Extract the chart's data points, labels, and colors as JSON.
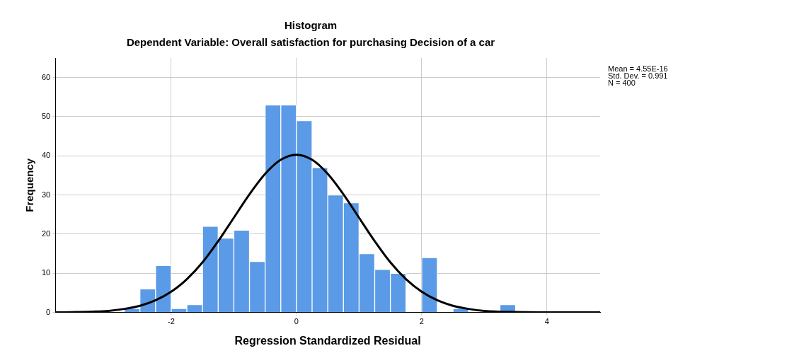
{
  "chart_data": {
    "type": "histogram",
    "title": "Histogram",
    "subtitle": "Dependent Variable: Overall satisfaction for purchasing Decision of a car",
    "xlabel": "Regression Standardized Residual",
    "ylabel": "Frequency",
    "annotations": [
      "Mean = 4.55E-16",
      "Std. Dev. = 0.991",
      "N = 400"
    ],
    "bins": [
      -2.75,
      -2.5,
      -2.25,
      -2,
      -1.75,
      -1.5,
      -1.25,
      -1,
      -0.75,
      -0.5,
      -0.25,
      0,
      0.25,
      0.5,
      0.75,
      1,
      1.25,
      1.5,
      1.75,
      2,
      2.25,
      2.5,
      2.75,
      3,
      3.25,
      3.5
    ],
    "values": [
      1,
      6,
      12,
      1,
      2,
      22,
      19,
      21,
      13,
      53,
      53,
      49,
      37,
      30,
      28,
      15,
      11,
      10,
      0,
      14,
      0,
      1,
      0,
      0,
      2
    ],
    "color": "#5a9ae6",
    "series": [
      {
        "type": "line",
        "color": "#000000",
        "x": [
          -3.85,
          -3.5,
          -3.25,
          -3,
          -2.75,
          -2.5,
          -2.25,
          -2,
          -1.75,
          -1.5,
          -1.25,
          -1,
          -0.75,
          -0.5,
          -0.25,
          0,
          0.25,
          0.5,
          0.75,
          1,
          1.25,
          1.5,
          1.75,
          2,
          2.25,
          2.5,
          2.75,
          3,
          3.5,
          4,
          4.85
        ],
        "values": [
          0,
          0.1,
          0.2,
          0.4,
          0.9,
          1.7,
          3.1,
          5.3,
          8.5,
          12.8,
          18.2,
          24.2,
          30.2,
          35.4,
          39,
          40.3,
          39,
          35.4,
          30.2,
          24.2,
          18.2,
          12.8,
          8.5,
          5.3,
          3.1,
          1.7,
          0.9,
          0.4,
          0.1,
          0,
          0
        ]
      }
    ],
    "xlim": [
      -3.85,
      4.85
    ],
    "xticks": [
      -2,
      0,
      2,
      4
    ],
    "ylim": [
      0,
      65
    ],
    "yticks": [
      0,
      10,
      20,
      30,
      40,
      50,
      60
    ],
    "grid": true,
    "legend": false,
    "marker": "none",
    "line_style": "solid"
  }
}
